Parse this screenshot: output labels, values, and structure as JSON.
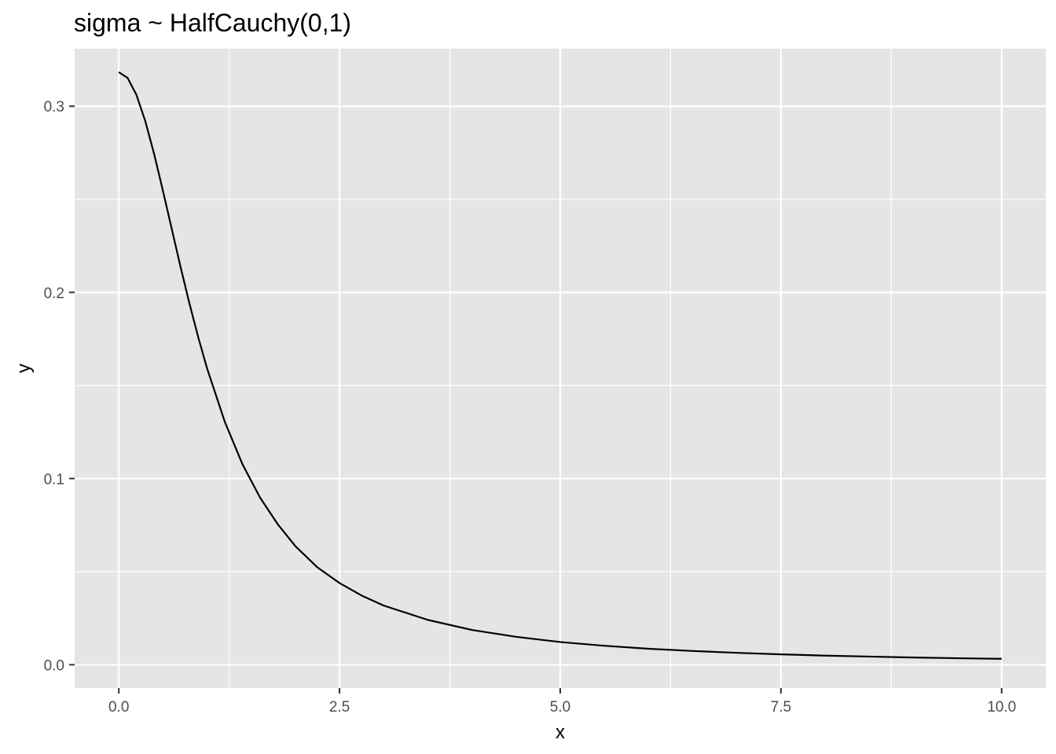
{
  "chart_data": {
    "type": "line",
    "title": "sigma ~ HalfCauchy(0,1)",
    "xlabel": "x",
    "ylabel": "y",
    "xlim": [
      -0.5,
      10.5
    ],
    "ylim": [
      -0.0125,
      0.3309
    ],
    "x_ticks": [
      "0.0",
      "2.5",
      "5.0",
      "7.5",
      "10.0"
    ],
    "y_ticks": [
      "0.0",
      "0.1",
      "0.2",
      "0.3"
    ],
    "grid": true,
    "legend": "none",
    "colors": {
      "panel": "#e5e5e5",
      "grid": "#ffffff",
      "line": "#000000",
      "tick_text": "#4d4d4d"
    },
    "series": [
      {
        "x": [
          0.0,
          0.1,
          0.2,
          0.3,
          0.4,
          0.5,
          0.6,
          0.7,
          0.8,
          0.9,
          1.0,
          1.2,
          1.4,
          1.6,
          1.8,
          2.0,
          2.25,
          2.5,
          2.75,
          3.0,
          3.5,
          4.0,
          4.5,
          5.0,
          5.5,
          6.0,
          6.5,
          7.0,
          7.5,
          8.0,
          8.5,
          9.0,
          9.5,
          10.0
        ],
        "values": [
          0.3183,
          0.3152,
          0.3061,
          0.292,
          0.2744,
          0.2546,
          0.2341,
          0.2136,
          0.1941,
          0.1759,
          0.1592,
          0.1306,
          0.1078,
          0.0898,
          0.0755,
          0.0637,
          0.0523,
          0.0439,
          0.0372,
          0.0318,
          0.0241,
          0.0187,
          0.015,
          0.0122,
          0.0102,
          0.0086,
          0.0074,
          0.0064,
          0.0056,
          0.0049,
          0.0044,
          0.0039,
          0.0035,
          0.0032
        ]
      }
    ]
  }
}
